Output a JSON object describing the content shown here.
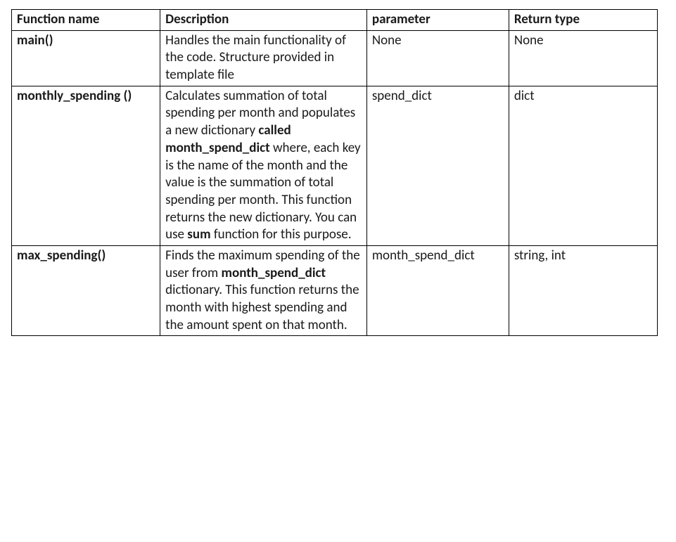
{
  "table": {
    "columns": [
      "Function name",
      "Description",
      "parameter",
      "Return type"
    ],
    "col_widths_pct": [
      23,
      32,
      22,
      23
    ],
    "border_color": "#000000",
    "background_color": "#ffffff",
    "text_color": "#1a1a1a",
    "font_family": "Calibri",
    "font_size_pt": 14,
    "rows": [
      {
        "function_name": "main()",
        "description_runs": [
          {
            "text": "Handles the main functionality of the code. Structure provided in template file",
            "bold": false
          }
        ],
        "parameter": "None",
        "return_type": "None"
      },
      {
        "function_name": "monthly_spending ()",
        "description_runs": [
          {
            "text": "Calculates summation of total spending per month and populates a new dictionary ",
            "bold": false
          },
          {
            "text": "called month_spend_dict",
            "bold": true
          },
          {
            "text": " where, each key is the name of the month and the value is the summation of total spending per month. This function returns the new dictionary. You can use ",
            "bold": false
          },
          {
            "text": "sum",
            "bold": true
          },
          {
            "text": " function for this purpose.",
            "bold": false
          }
        ],
        "parameter": "spend_dict",
        "return_type": "dict"
      },
      {
        "function_name": "max_spending()",
        "description_runs": [
          {
            "text": "Finds the maximum spending of the user from ",
            "bold": false
          },
          {
            "text": "month_spend_dict",
            "bold": true
          },
          {
            "text": " dictionary. This function returns the month with highest spending and the amount spent on that month.",
            "bold": false
          }
        ],
        "parameter": "month_spend_dict",
        "return_type": "string, int"
      }
    ]
  }
}
